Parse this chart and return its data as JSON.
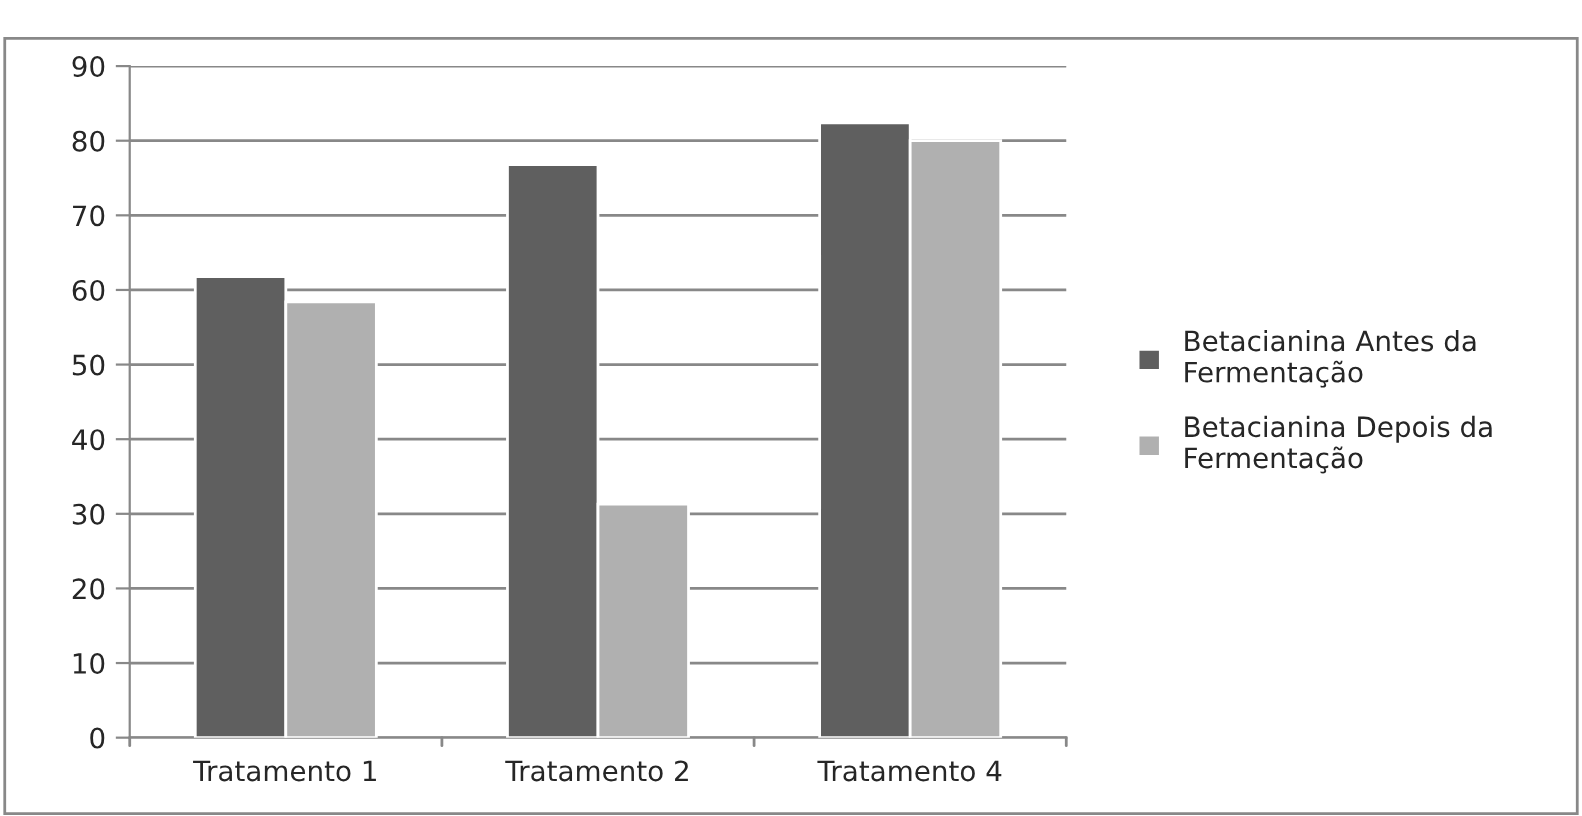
{
  "chart_data": {
    "type": "bar",
    "categories": [
      "Tratamento 1",
      "Tratamento 2",
      "Tratamento 4"
    ],
    "series": [
      {
        "name": "Betacianina Antes da Fermentação",
        "color": "#5f5f5f",
        "values": [
          61.8,
          76.8,
          82.4
        ]
      },
      {
        "name": "Betacianina Depois da Fermentação",
        "color": "#b0b0b0",
        "values": [
          58.4,
          31.3,
          80.0
        ]
      }
    ],
    "ylim": [
      0,
      90
    ],
    "yticks": [
      0,
      10,
      20,
      30,
      40,
      50,
      60,
      70,
      80,
      90
    ],
    "grid": "y",
    "legend": "right"
  }
}
